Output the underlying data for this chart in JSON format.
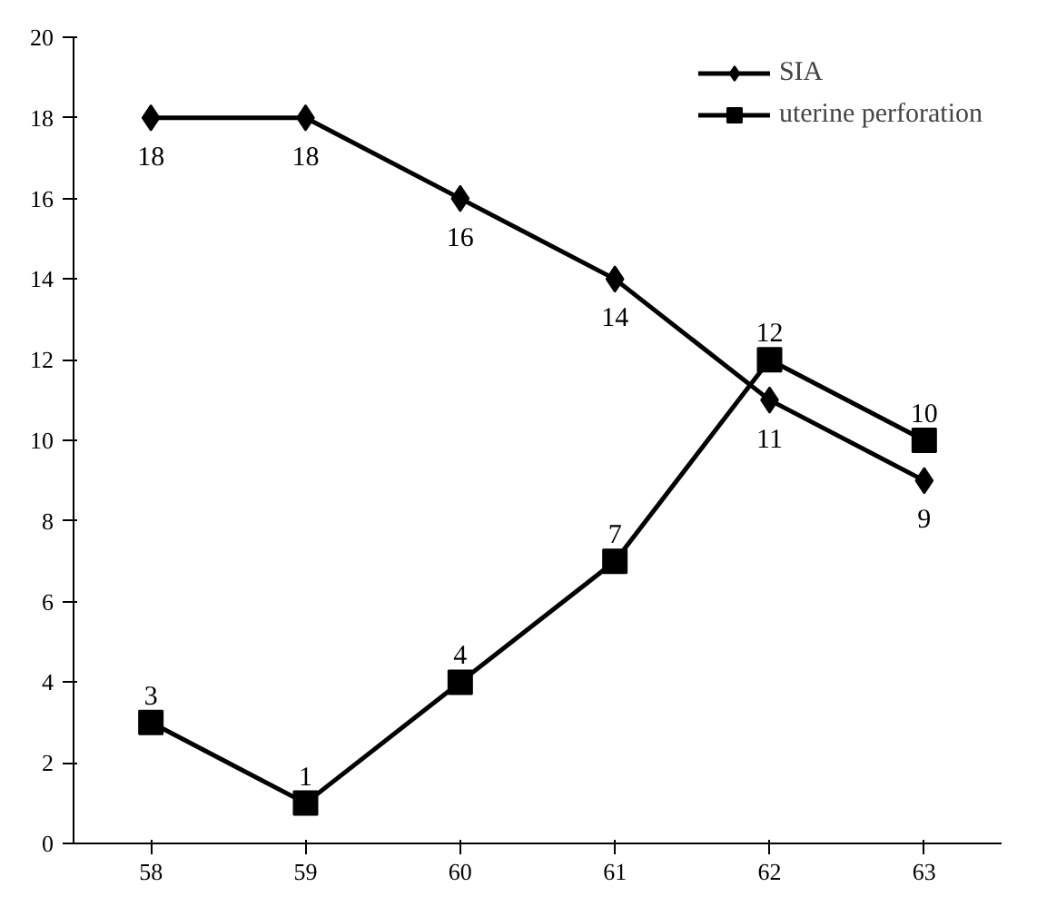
{
  "chart_data": {
    "type": "line",
    "categories": [
      "58",
      "59",
      "60",
      "61",
      "62",
      "63"
    ],
    "series": [
      {
        "name": "SIA",
        "color": "#000000",
        "marker": "diamond",
        "values": [
          18,
          18,
          16,
          14,
          11,
          9
        ]
      },
      {
        "name": "uterine perforation",
        "color": "#000000",
        "marker": "square",
        "values": [
          3,
          1,
          4,
          7,
          12,
          10
        ]
      }
    ],
    "ylim": [
      0,
      20
    ],
    "yticks": [
      0,
      2,
      4,
      6,
      8,
      10,
      12,
      14,
      16,
      18,
      20
    ],
    "grid": false,
    "legend": "top right",
    "data_labels": true,
    "line_style": "solid"
  }
}
